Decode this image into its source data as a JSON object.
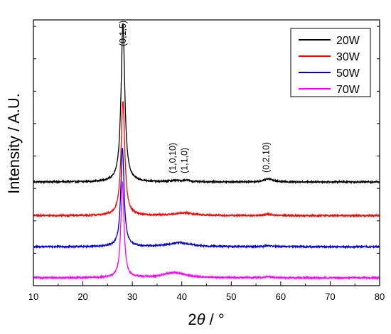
{
  "chart_data": {
    "type": "line",
    "xlabel_main": "2",
    "xlabel_theta": "θ",
    "xlabel_unit": " / °",
    "ylabel": "Intensity / A.U.",
    "xlim": [
      10,
      80
    ],
    "x_ticks": [
      "10",
      "20",
      "30",
      "40",
      "50",
      "60",
      "70",
      "80"
    ],
    "y_tick_labels": "none",
    "grid": false,
    "legend_position": "top-right",
    "series": [
      {
        "name": "20W",
        "color": "#000000",
        "baseline": 0.8,
        "noise": 0.006,
        "peaks": [
          {
            "x": 28.1,
            "h": 1.22,
            "w": 0.45
          },
          {
            "x": 38.6,
            "h": 0.01,
            "w": 1.2
          },
          {
            "x": 41.0,
            "h": 0.012,
            "w": 0.8
          },
          {
            "x": 57.5,
            "h": 0.025,
            "w": 1.0
          }
        ]
      },
      {
        "name": "30W",
        "color": "#ff0000",
        "baseline": 0.54,
        "noise": 0.006,
        "peaks": [
          {
            "x": 28.1,
            "h": 0.88,
            "w": 0.45
          },
          {
            "x": 40.5,
            "h": 0.02,
            "w": 2.5
          },
          {
            "x": 57.5,
            "h": 0.01,
            "w": 1.0
          }
        ]
      },
      {
        "name": "50W",
        "color": "#0000cc",
        "baseline": 0.3,
        "noise": 0.006,
        "peaks": [
          {
            "x": 28.0,
            "h": 0.76,
            "w": 0.4
          },
          {
            "x": 39.5,
            "h": 0.03,
            "w": 2.8
          },
          {
            "x": 57.5,
            "h": 0.008,
            "w": 1.0
          }
        ]
      },
      {
        "name": "70W",
        "color": "#ff00ff",
        "baseline": 0.06,
        "noise": 0.006,
        "peaks": [
          {
            "x": 28.0,
            "h": 0.74,
            "w": 0.38
          },
          {
            "x": 38.5,
            "h": 0.04,
            "w": 2.8
          },
          {
            "x": 57.5,
            "h": 0.008,
            "w": 1.0
          }
        ]
      }
    ],
    "annotations": [
      {
        "text": "(0,1,5)",
        "x": 28.1
      },
      {
        "text": "(1,0,10)",
        "x": 38.6
      },
      {
        "text": "(1,1,0)",
        "x": 41.0
      },
      {
        "text": "(0,2,10)",
        "x": 57.5
      }
    ]
  }
}
